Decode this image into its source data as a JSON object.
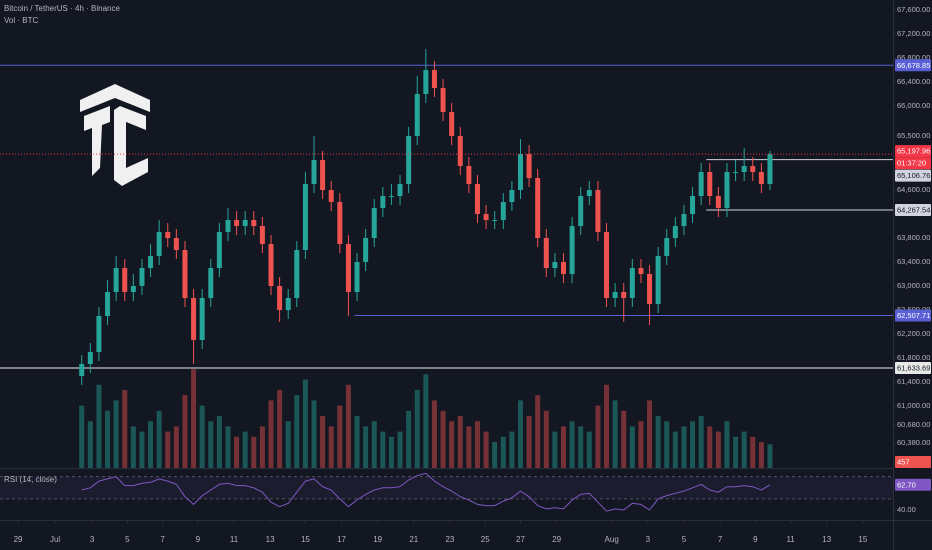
{
  "chart_data": {
    "type": "candlestick",
    "title": "Bitcoin / TetherUS · 4h · Binance",
    "volume_title": "Vol · BTC",
    "rsi_title": "RSI (14, close)",
    "up_color": "#26a69a",
    "down_color": "#ef5350",
    "open": [
      61500,
      61700,
      61900,
      62500,
      62900,
      63300,
      62900,
      63000,
      63300,
      63500,
      63900,
      63800,
      63600,
      62800,
      62100,
      62800,
      63300,
      63900,
      64100,
      64000,
      64100,
      64000,
      63700,
      63000,
      62600,
      62800,
      63600,
      64700,
      65100,
      64600,
      64400,
      63700,
      62900,
      63400,
      63800,
      64300,
      64500,
      64500,
      64700,
      65500,
      66200,
      66600,
      66300,
      65900,
      65500,
      65000,
      64700,
      64200,
      64100,
      64100,
      64400,
      64600,
      65200,
      64800,
      63800,
      63300,
      63400,
      63200,
      64000,
      64500,
      64600,
      63900,
      62800,
      62900,
      62800,
      63300,
      63200,
      62700,
      63500,
      63800,
      64000,
      64200,
      64500,
      64900,
      64500,
      64300,
      64900,
      64900,
      65000,
      64900,
      64700
    ],
    "high": [
      61850,
      62050,
      62650,
      63100,
      63500,
      63450,
      63200,
      63450,
      63700,
      64100,
      64050,
      63950,
      63750,
      62950,
      62950,
      63450,
      64050,
      64300,
      64250,
      64250,
      64250,
      64150,
      63850,
      63150,
      62950,
      63750,
      64900,
      65500,
      65250,
      64750,
      64550,
      63850,
      63550,
      63950,
      64450,
      64650,
      64700,
      64850,
      65650,
      66500,
      66950,
      66750,
      66450,
      66050,
      65650,
      65150,
      64850,
      64350,
      64250,
      64550,
      64750,
      65450,
      65350,
      64950,
      63950,
      63550,
      63550,
      64150,
      64650,
      64750,
      64750,
      64050,
      63050,
      63050,
      63450,
      63450,
      63350,
      63650,
      63950,
      64150,
      64350,
      64650,
      65050,
      65050,
      64650,
      65050,
      65100,
      65300,
      65150,
      65050,
      65250
    ],
    "low": [
      61350,
      61550,
      61750,
      62350,
      62750,
      62750,
      62750,
      62850,
      63150,
      63350,
      63650,
      63450,
      62650,
      61700,
      61950,
      62650,
      63150,
      63750,
      63850,
      63850,
      63850,
      63550,
      62850,
      62400,
      62450,
      62650,
      63450,
      64550,
      64450,
      64250,
      63550,
      62500,
      62750,
      63250,
      63650,
      64150,
      64350,
      64350,
      64550,
      65350,
      66050,
      66150,
      65750,
      65350,
      64850,
      64550,
      64050,
      63950,
      63950,
      63950,
      64250,
      64450,
      64650,
      63650,
      63150,
      63150,
      63050,
      63050,
      63850,
      64350,
      63750,
      62650,
      62650,
      62400,
      62650,
      63050,
      62350,
      62550,
      63350,
      63650,
      63850,
      64050,
      64350,
      64350,
      64150,
      64150,
      64750,
      64750,
      64750,
      64550,
      64600
    ],
    "close": [
      61700,
      61900,
      62500,
      62900,
      63300,
      62900,
      63000,
      63300,
      63500,
      63900,
      63800,
      63600,
      62800,
      62100,
      62800,
      63300,
      63900,
      64100,
      64000,
      64100,
      64000,
      63700,
      63000,
      62600,
      62800,
      63600,
      64700,
      65100,
      64600,
      64400,
      63700,
      62900,
      63400,
      63800,
      64300,
      64500,
      64500,
      64700,
      65500,
      66200,
      66600,
      66300,
      65900,
      65500,
      65000,
      64700,
      64200,
      64100,
      64100,
      64400,
      64600,
      65200,
      64800,
      63800,
      63300,
      63400,
      63200,
      64000,
      64500,
      64600,
      63900,
      62800,
      62900,
      62800,
      63300,
      63200,
      62700,
      63500,
      63800,
      64000,
      64200,
      64500,
      64900,
      64500,
      64300,
      64900,
      64900,
      65000,
      64900,
      64700,
      65197.96
    ],
    "volume": [
      1200,
      900,
      1600,
      1100,
      1300,
      1500,
      800,
      700,
      900,
      1100,
      700,
      800,
      1400,
      1900,
      1200,
      900,
      1000,
      800,
      600,
      700,
      600,
      800,
      1300,
      1500,
      900,
      1400,
      1700,
      1300,
      1000,
      800,
      1200,
      1600,
      1000,
      800,
      900,
      700,
      600,
      700,
      1100,
      1500,
      1800,
      1300,
      1100,
      900,
      1000,
      800,
      900,
      700,
      500,
      600,
      700,
      1300,
      1000,
      1400,
      1100,
      700,
      800,
      900,
      800,
      700,
      1200,
      1600,
      1300,
      1100,
      800,
      900,
      1300,
      1000,
      900,
      700,
      800,
      900,
      1000,
      800,
      700,
      900,
      600,
      700,
      600,
      500,
      457
    ],
    "rsi": [
      58,
      60,
      66,
      68,
      70,
      62,
      62,
      64,
      65,
      68,
      66,
      63,
      52,
      45,
      53,
      58,
      63,
      64,
      62,
      62,
      60,
      56,
      47,
      43,
      46,
      56,
      66,
      68,
      61,
      58,
      50,
      43,
      49,
      54,
      58,
      60,
      60,
      61,
      67,
      71,
      73,
      66,
      61,
      57,
      52,
      49,
      45,
      44,
      44,
      48,
      51,
      57,
      52,
      44,
      41,
      42,
      41,
      49,
      54,
      55,
      47,
      39,
      41,
      40,
      46,
      45,
      40,
      50,
      53,
      55,
      57,
      60,
      63,
      58,
      56,
      61,
      61,
      62,
      61,
      58,
      62.7
    ],
    "rsi_last": {
      "value": 62.7,
      "label": "62.70"
    },
    "rsi_color": "#7e57c2",
    "rsi_levels": [
      70,
      50
    ],
    "rsi_lim": [
      31,
      76
    ],
    "rsi_ticks": [
      {
        "value": 40,
        "label": "40.00"
      }
    ],
    "vlim": [
      0,
      9000
    ],
    "xlim": [
      -9.5,
      94.3
    ],
    "xticks": [
      {
        "value": -7.4,
        "label": "29"
      },
      {
        "value": -3.1,
        "label": "Jul"
      },
      {
        "value": 1.2,
        "label": "3"
      },
      {
        "value": 5.3,
        "label": "5"
      },
      {
        "value": 9.4,
        "label": "7"
      },
      {
        "value": 13.5,
        "label": "9"
      },
      {
        "value": 17.7,
        "label": "11"
      },
      {
        "value": 21.9,
        "label": "13"
      },
      {
        "value": 26,
        "label": "15"
      },
      {
        "value": 30.2,
        "label": "17"
      },
      {
        "value": 34.4,
        "label": "19"
      },
      {
        "value": 38.6,
        "label": "21"
      },
      {
        "value": 42.8,
        "label": "23"
      },
      {
        "value": 46.9,
        "label": "25"
      },
      {
        "value": 51,
        "label": "27"
      },
      {
        "value": 55.2,
        "label": "29"
      },
      {
        "value": 61.6,
        "label": "Aug"
      },
      {
        "value": 65.8,
        "label": "3"
      },
      {
        "value": 70,
        "label": "5"
      },
      {
        "value": 74.2,
        "label": "7"
      },
      {
        "value": 78.3,
        "label": "9"
      },
      {
        "value": 82.4,
        "label": "11"
      },
      {
        "value": 86.6,
        "label": "13"
      },
      {
        "value": 90.8,
        "label": "15"
      }
    ],
    "ylim": [
      59967,
      67767
    ],
    "yticks": [
      {
        "value": 67600,
        "label": "67,600.00"
      },
      {
        "value": 67200,
        "label": "67,200.00"
      },
      {
        "value": 66800,
        "label": "66,800.00"
      },
      {
        "value": 66400,
        "label": "66,400.00"
      },
      {
        "value": 66000,
        "label": "66,000.00"
      },
      {
        "value": 65500,
        "label": "65,500.00"
      },
      {
        "value": 64600,
        "label": "64,600.00"
      },
      {
        "value": 63800,
        "label": "63,800.00"
      },
      {
        "value": 63400,
        "label": "63,400.00"
      },
      {
        "value": 63000,
        "label": "63,000.00"
      },
      {
        "value": 62600,
        "label": "62,600.00"
      },
      {
        "value": 62200,
        "label": "62,200.00"
      },
      {
        "value": 61800,
        "label": "61,800.00"
      },
      {
        "value": 61400,
        "label": "61,400.00"
      },
      {
        "value": 61000,
        "label": "61,000.00"
      },
      {
        "value": 60680,
        "label": "60,680.00"
      },
      {
        "value": 60380,
        "label": "60,380.00"
      }
    ],
    "last_price": {
      "value": 65197.96,
      "label": "65,197.96",
      "countdown": "01:37:20",
      "color": "#f23645"
    },
    "ref_price": {
      "value": 65106.76,
      "label": "65,106.76"
    },
    "levels": [
      {
        "value": 66678.85,
        "label": "66,678.85",
        "from": -9.5,
        "color": "#5b5fd6"
      },
      {
        "value": 62507.71,
        "label": "62,507.71",
        "from": 31.7,
        "color": "#5b5fd6"
      },
      {
        "value": 61633.69,
        "label": "61,633.69",
        "from": -9.5,
        "color": "#e8e8e8"
      },
      {
        "value": 64267.54,
        "label": "64,267.54",
        "from": 72.6,
        "color": "#d1d4dc"
      },
      {
        "value": 65106.76,
        "label": "",
        "from": 72.6,
        "color": "#d1d4dc"
      }
    ]
  }
}
